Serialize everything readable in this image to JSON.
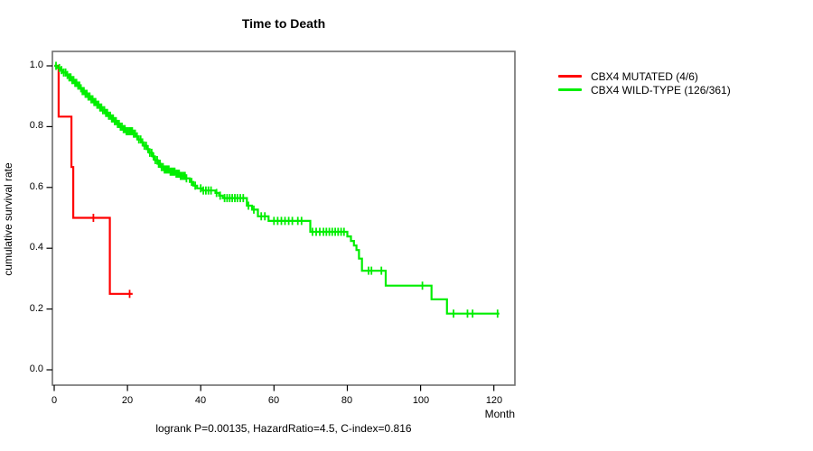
{
  "figure": {
    "title": "Time to Death",
    "caption": "logrank P=0.00135, HazardRatio=4.5, C-index=0.816",
    "x_axis_label": "Month",
    "y_axis_label": "cumulative survival rate",
    "x_tick_labels": [
      "0",
      "20",
      "40",
      "60",
      "80",
      "100",
      "120"
    ],
    "y_tick_labels": [
      "1.0",
      "0.8",
      "0.6",
      "0.4",
      "0.2",
      "0.0"
    ],
    "background": "#FFFFFF"
  },
  "legend": {
    "items": [
      {
        "label": "CBX4 MUTATED (4/6)",
        "color": "#FF0000"
      },
      {
        "label": "CBX4 WILD-TYPE (126/361)",
        "color": "#00EE00"
      }
    ]
  },
  "chart_data": {
    "type": "line",
    "subtype": "kaplan-meier-step",
    "title": "Time to Death",
    "xlabel": "Month",
    "ylabel": "cumulative survival rate",
    "xlim": [
      0,
      126
    ],
    "ylim": [
      0.0,
      1.04
    ],
    "x_ticks": [
      0,
      20,
      40,
      60,
      80,
      100,
      120
    ],
    "y_ticks": [
      1.0,
      0.8,
      0.6,
      0.4,
      0.2,
      0.0
    ],
    "grid": false,
    "legend_position": "outside-right",
    "annotation": "logrank P=0.00135, HazardRatio=4.5, C-index=0.816",
    "series": [
      {
        "name": "CBX4 MUTATED (4/6)",
        "color": "#FF0000",
        "n_events": 4,
        "n_total": 6,
        "end_month": 21.4,
        "steps": [
          [
            0,
            1.0
          ],
          [
            1.2,
            0.833
          ],
          [
            4.7,
            0.667
          ],
          [
            5.2,
            0.5
          ],
          [
            15.2,
            0.25
          ]
        ],
        "censors": [
          10.7,
          20.6
        ]
      },
      {
        "name": "CBX4 WILD-TYPE (126/361)",
        "color": "#00EE00",
        "n_events": 126,
        "n_total": 361,
        "end_month": 121.5,
        "steps": [
          [
            0,
            1.0
          ],
          [
            0.8,
            0.993
          ],
          [
            1.6,
            0.986
          ],
          [
            2.4,
            0.978
          ],
          [
            3.2,
            0.97
          ],
          [
            4.0,
            0.962
          ],
          [
            4.8,
            0.953
          ],
          [
            5.6,
            0.944
          ],
          [
            6.3,
            0.935
          ],
          [
            7.0,
            0.926
          ],
          [
            7.7,
            0.917
          ],
          [
            8.5,
            0.908
          ],
          [
            9.2,
            0.899
          ],
          [
            10.0,
            0.89
          ],
          [
            10.8,
            0.881
          ],
          [
            11.6,
            0.872
          ],
          [
            12.4,
            0.863
          ],
          [
            13.2,
            0.854
          ],
          [
            14.0,
            0.845
          ],
          [
            14.8,
            0.836
          ],
          [
            15.6,
            0.827
          ],
          [
            16.3,
            0.818
          ],
          [
            17.0,
            0.809
          ],
          [
            17.8,
            0.8
          ],
          [
            18.6,
            0.792
          ],
          [
            19.4,
            0.785
          ],
          [
            21.5,
            0.777
          ],
          [
            22.3,
            0.768
          ],
          [
            23.0,
            0.758
          ],
          [
            23.8,
            0.748
          ],
          [
            24.5,
            0.737
          ],
          [
            25.2,
            0.726
          ],
          [
            26.0,
            0.714
          ],
          [
            26.8,
            0.702
          ],
          [
            27.5,
            0.69
          ],
          [
            28.2,
            0.678
          ],
          [
            29.0,
            0.667
          ],
          [
            30.0,
            0.659
          ],
          [
            31.5,
            0.652
          ],
          [
            33.0,
            0.645
          ],
          [
            34.5,
            0.638
          ],
          [
            36.0,
            0.63
          ],
          [
            37.0,
            0.618
          ],
          [
            38.0,
            0.606
          ],
          [
            39.0,
            0.597
          ],
          [
            40.5,
            0.59
          ],
          [
            44.0,
            0.582
          ],
          [
            45.0,
            0.573
          ],
          [
            46.0,
            0.565
          ],
          [
            52.6,
            0.54
          ],
          [
            54.0,
            0.527
          ],
          [
            55.6,
            0.505
          ],
          [
            58.5,
            0.49
          ],
          [
            69.9,
            0.454
          ],
          [
            80.0,
            0.439
          ],
          [
            81.0,
            0.424
          ],
          [
            81.8,
            0.409
          ],
          [
            82.5,
            0.394
          ],
          [
            83.2,
            0.366
          ],
          [
            84.0,
            0.326
          ],
          [
            90.5,
            0.277
          ],
          [
            103.0,
            0.232
          ],
          [
            107.2,
            0.185
          ]
        ],
        "censors": [
          0.5,
          1.4,
          2.0,
          2.6,
          3.1,
          3.6,
          4.1,
          4.5,
          4.9,
          5.3,
          5.7,
          6.1,
          6.5,
          6.9,
          7.3,
          7.7,
          8.1,
          8.5,
          8.9,
          9.3,
          9.7,
          10.1,
          10.5,
          10.9,
          11.3,
          11.7,
          12.1,
          12.5,
          12.9,
          13.3,
          13.7,
          14.1,
          14.5,
          14.9,
          15.3,
          15.7,
          16.1,
          16.5,
          16.9,
          17.3,
          17.7,
          18.1,
          18.5,
          18.9,
          19.3,
          19.7,
          20.1,
          20.5,
          20.9,
          21.3,
          21.7,
          22.1,
          22.6,
          23.1,
          23.6,
          24.1,
          24.6,
          25.1,
          25.6,
          26.1,
          26.6,
          27.1,
          27.6,
          28.1,
          28.5,
          28.9,
          29.3,
          29.7,
          30.1,
          30.5,
          30.9,
          31.3,
          31.7,
          32.1,
          32.5,
          32.9,
          33.3,
          33.7,
          34.1,
          34.5,
          34.9,
          35.3,
          35.7,
          36.1,
          37.5,
          38.5,
          40.0,
          40.7,
          41.4,
          42.1,
          42.8,
          44.3,
          45.3,
          46.5,
          47.2,
          47.9,
          48.6,
          49.3,
          50.0,
          50.8,
          51.6,
          53.0,
          54.5,
          56.5,
          57.5,
          60.0,
          61.0,
          62.0,
          63.0,
          64.0,
          65.0,
          66.5,
          67.5,
          70.5,
          71.5,
          72.5,
          73.5,
          74.3,
          75.1,
          75.9,
          76.7,
          77.5,
          78.3,
          79.1,
          85.8,
          86.6,
          89.3,
          100.5,
          109.0,
          112.8,
          114.2,
          121.0
        ]
      }
    ]
  }
}
